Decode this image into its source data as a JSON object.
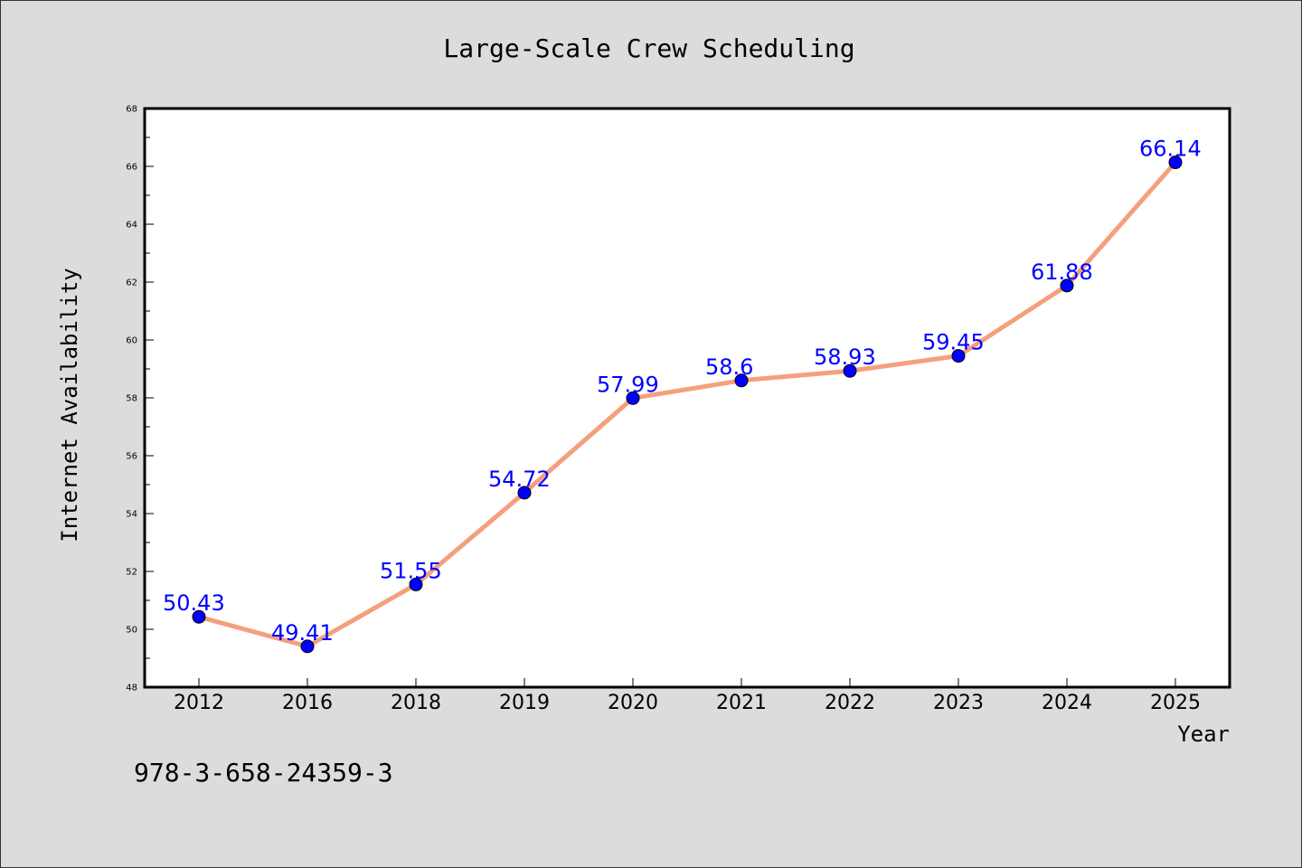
{
  "chart_data": {
    "type": "line",
    "title": "Large-Scale Crew Scheduling",
    "xlabel": "Year",
    "ylabel": "Internet Availability",
    "categories": [
      "2012",
      "2016",
      "2018",
      "2019",
      "2020",
      "2021",
      "2022",
      "2023",
      "2024",
      "2025"
    ],
    "series": [
      {
        "values": [
          50.43,
          49.41,
          51.55,
          54.72,
          57.99,
          58.6,
          58.93,
          59.45,
          61.88,
          66.14
        ],
        "labels": [
          "50.43",
          "49.41",
          "51.55",
          "54.72",
          "57.99",
          "58.6",
          "58.93",
          "59.45",
          "61.88",
          "66.14"
        ]
      }
    ],
    "ylim": [
      48,
      68
    ],
    "yticks": [
      "48",
      "50",
      "52",
      "54",
      "56",
      "58",
      "60",
      "62",
      "64",
      "66",
      "68"
    ],
    "grid": false,
    "line_color": "#f4a07e",
    "marker_color": "#0000ff",
    "label_color": "#0000ff"
  },
  "footer": {
    "code": "978-3-658-24359-3"
  }
}
